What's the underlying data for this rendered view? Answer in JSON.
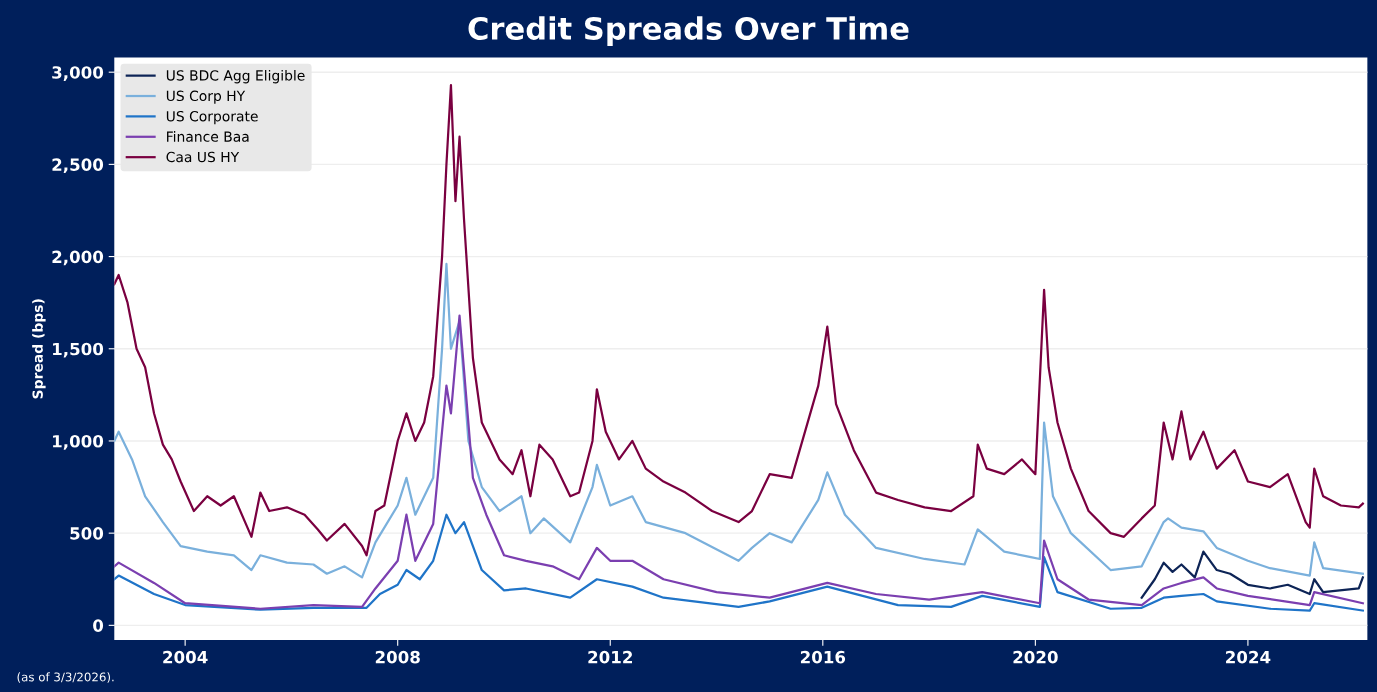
{
  "chart_data": {
    "type": "line",
    "title": "Credit Spreads Over Time",
    "ylabel": "Spread (bps)",
    "annotations": [
      "(as of 3/3/2026)."
    ],
    "xlim": [
      "2002-09",
      "2026-04"
    ],
    "xticks": [
      {
        "value": "2004-01",
        "label": "2004"
      },
      {
        "value": "2008-01",
        "label": "2008"
      },
      {
        "value": "2012-01",
        "label": "2012"
      },
      {
        "value": "2016-01",
        "label": "2016"
      },
      {
        "value": "2020-01",
        "label": "2020"
      },
      {
        "value": "2024-01",
        "label": "2024"
      }
    ],
    "ylim": [
      -80,
      3080
    ],
    "yticks": [
      0,
      500,
      {
        "value": 1000,
        "label": "1,000"
      },
      {
        "value": 1500,
        "label": "1,500"
      },
      {
        "value": 2000,
        "label": "2,000"
      },
      {
        "value": 2500,
        "label": "2,500"
      },
      {
        "value": 3000,
        "label": "3,000"
      }
    ],
    "grid": "y",
    "legend": "top left",
    "marker": "none",
    "line_style": "solid",
    "series": [
      {
        "name": "US BDC Agg Eligible",
        "color": "#0d2456",
        "x": [
          "2022-01",
          "2022-04",
          "2022-06",
          "2022-08",
          "2022-10",
          "2023-01",
          "2023-03",
          "2023-06",
          "2023-09",
          "2024-01",
          "2024-06",
          "2024-10",
          "2025-03",
          "2025-04",
          "2025-06",
          "2026-02",
          "2026-03"
        ],
        "values": [
          150,
          250,
          340,
          290,
          330,
          260,
          400,
          300,
          280,
          220,
          200,
          220,
          170,
          250,
          180,
          200,
          260
        ]
      },
      {
        "name": "US Corp HY",
        "color": "#7ab0dc",
        "x": [
          "2002-09",
          "2002-10",
          "2003-01",
          "2003-04",
          "2003-08",
          "2003-12",
          "2004-06",
          "2004-12",
          "2005-04",
          "2005-06",
          "2005-12",
          "2006-06",
          "2006-09",
          "2007-01",
          "2007-05",
          "2007-08",
          "2008-01",
          "2008-03",
          "2008-05",
          "2008-09",
          "2008-11",
          "2008-12",
          "2009-01",
          "2009-03",
          "2009-05",
          "2009-08",
          "2009-12",
          "2010-05",
          "2010-07",
          "2010-10",
          "2011-04",
          "2011-09",
          "2011-10",
          "2012-01",
          "2012-06",
          "2012-09",
          "2013-06",
          "2014-06",
          "2014-09",
          "2015-01",
          "2015-06",
          "2015-12",
          "2016-02",
          "2016-06",
          "2017-01",
          "2017-12",
          "2018-09",
          "2018-12",
          "2019-06",
          "2019-12",
          "2020-02",
          "2020-03",
          "2020-05",
          "2020-09",
          "2021-06",
          "2022-01",
          "2022-06",
          "2022-07",
          "2022-10",
          "2023-03",
          "2023-06",
          "2024-01",
          "2024-06",
          "2025-03",
          "2025-04",
          "2025-06",
          "2026-03"
        ],
        "values": [
          1000,
          1050,
          900,
          700,
          560,
          430,
          400,
          380,
          300,
          380,
          340,
          330,
          280,
          320,
          260,
          450,
          650,
          800,
          600,
          800,
          1500,
          1960,
          1500,
          1650,
          1000,
          750,
          620,
          700,
          500,
          580,
          450,
          750,
          870,
          650,
          700,
          560,
          500,
          350,
          420,
          500,
          450,
          680,
          830,
          600,
          420,
          360,
          330,
          520,
          400,
          370,
          360,
          1100,
          700,
          500,
          300,
          320,
          560,
          580,
          530,
          510,
          420,
          350,
          310,
          270,
          450,
          310,
          280
        ]
      },
      {
        "name": "US Corporate",
        "color": "#1f74c8",
        "x": [
          "2002-09",
          "2002-10",
          "2003-06",
          "2004-01",
          "2005-06",
          "2006-06",
          "2007-06",
          "2007-09",
          "2008-01",
          "2008-03",
          "2008-06",
          "2008-09",
          "2008-12",
          "2009-02",
          "2009-04",
          "2009-08",
          "2010-01",
          "2010-06",
          "2011-04",
          "2011-10",
          "2012-06",
          "2013-01",
          "2014-06",
          "2015-01",
          "2016-02",
          "2017-06",
          "2018-06",
          "2019-01",
          "2020-02",
          "2020-03",
          "2020-06",
          "2021-06",
          "2022-01",
          "2022-06",
          "2022-10",
          "2023-03",
          "2023-06",
          "2024-06",
          "2025-03",
          "2025-04",
          "2026-03"
        ],
        "values": [
          250,
          270,
          170,
          110,
          85,
          95,
          95,
          170,
          220,
          300,
          250,
          350,
          600,
          500,
          560,
          300,
          190,
          200,
          150,
          250,
          210,
          150,
          100,
          130,
          210,
          110,
          100,
          160,
          100,
          370,
          180,
          90,
          95,
          150,
          160,
          170,
          130,
          90,
          80,
          120,
          80
        ]
      },
      {
        "name": "Finance Baa",
        "color": "#7b3fb0",
        "x": [
          "2002-09",
          "2002-10",
          "2003-06",
          "2004-01",
          "2005-06",
          "2006-06",
          "2007-05",
          "2007-08",
          "2008-01",
          "2008-03",
          "2008-05",
          "2008-09",
          "2008-12",
          "2009-01",
          "2009-03",
          "2009-06",
          "2009-09",
          "2010-01",
          "2010-06",
          "2010-12",
          "2011-06",
          "2011-10",
          "2012-01",
          "2012-06",
          "2013-01",
          "2014-01",
          "2015-01",
          "2016-02",
          "2017-01",
          "2018-01",
          "2019-01",
          "2020-02",
          "2020-03",
          "2020-06",
          "2021-01",
          "2022-01",
          "2022-06",
          "2022-10",
          "2023-03",
          "2023-06",
          "2024-01",
          "2025-03",
          "2025-04",
          "2026-03"
        ],
        "values": [
          320,
          340,
          230,
          120,
          90,
          110,
          100,
          200,
          350,
          600,
          350,
          550,
          1300,
          1150,
          1680,
          800,
          600,
          380,
          350,
          320,
          250,
          420,
          350,
          350,
          250,
          180,
          150,
          230,
          170,
          140,
          180,
          120,
          460,
          250,
          140,
          110,
          200,
          230,
          260,
          200,
          160,
          110,
          180,
          120
        ]
      },
      {
        "name": "Caa US HY",
        "color": "#7a0040",
        "x": [
          "2002-09",
          "2002-10",
          "2002-12",
          "2003-02",
          "2003-04",
          "2003-06",
          "2003-08",
          "2003-10",
          "2003-12",
          "2004-03",
          "2004-06",
          "2004-09",
          "2004-12",
          "2005-04",
          "2005-06",
          "2005-08",
          "2005-12",
          "2006-04",
          "2006-07",
          "2006-09",
          "2007-01",
          "2007-05",
          "2007-06",
          "2007-08",
          "2007-10",
          "2008-01",
          "2008-03",
          "2008-05",
          "2008-07",
          "2008-09",
          "2008-11",
          "2008-12",
          "2009-01",
          "2009-02",
          "2009-03",
          "2009-04",
          "2009-06",
          "2009-08",
          "2009-10",
          "2009-12",
          "2010-03",
          "2010-05",
          "2010-07",
          "2010-09",
          "2010-12",
          "2011-04",
          "2011-06",
          "2011-09",
          "2011-10",
          "2011-12",
          "2012-03",
          "2012-06",
          "2012-09",
          "2013-01",
          "2013-06",
          "2013-12",
          "2014-06",
          "2014-09",
          "2015-01",
          "2015-06",
          "2015-12",
          "2016-02",
          "2016-04",
          "2016-08",
          "2017-01",
          "2017-06",
          "2017-12",
          "2018-06",
          "2018-11",
          "2018-12",
          "2019-02",
          "2019-06",
          "2019-10",
          "2020-01",
          "2020-03",
          "2020-04",
          "2020-06",
          "2020-09",
          "2021-01",
          "2021-06",
          "2021-09",
          "2022-01",
          "2022-04",
          "2022-06",
          "2022-08",
          "2022-10",
          "2022-12",
          "2023-03",
          "2023-06",
          "2023-10",
          "2024-01",
          "2024-06",
          "2024-10",
          "2025-02",
          "2025-03",
          "2025-04",
          "2025-06",
          "2025-10",
          "2026-02",
          "2026-03"
        ],
        "values": [
          1850,
          1900,
          1750,
          1500,
          1400,
          1150,
          980,
          900,
          780,
          620,
          700,
          650,
          700,
          480,
          720,
          620,
          640,
          600,
          520,
          460,
          550,
          430,
          380,
          620,
          650,
          1000,
          1150,
          1000,
          1100,
          1350,
          2000,
          2500,
          2930,
          2300,
          2650,
          2200,
          1450,
          1100,
          1000,
          900,
          820,
          950,
          700,
          980,
          900,
          700,
          720,
          1000,
          1280,
          1050,
          900,
          1000,
          850,
          780,
          720,
          620,
          560,
          620,
          820,
          800,
          1300,
          1620,
          1200,
          950,
          720,
          680,
          640,
          620,
          700,
          980,
          850,
          820,
          900,
          820,
          1820,
          1400,
          1100,
          850,
          620,
          500,
          480,
          580,
          650,
          1100,
          900,
          1160,
          900,
          1050,
          850,
          950,
          780,
          750,
          820,
          560,
          530,
          850,
          700,
          650,
          640,
          660
        ]
      }
    ]
  }
}
